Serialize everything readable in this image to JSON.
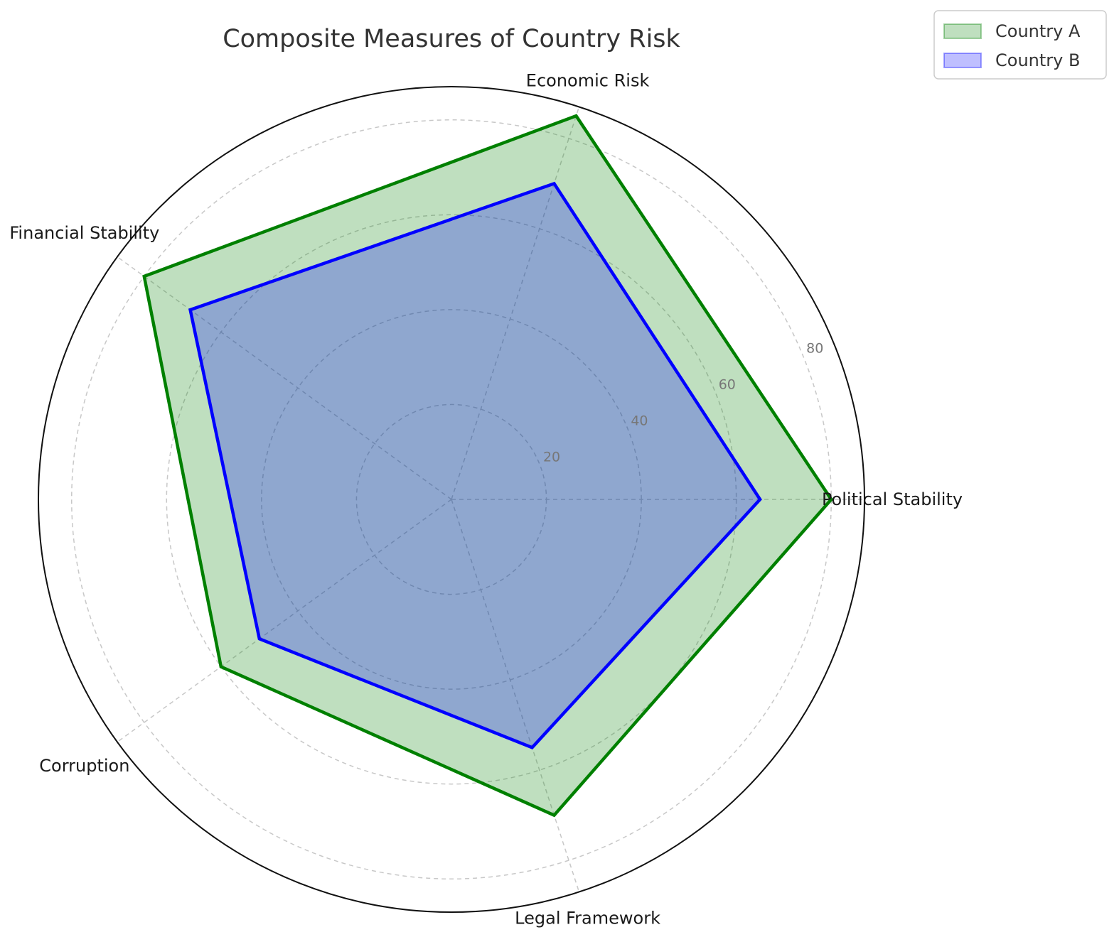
{
  "chart_data": {
    "type": "radar",
    "title": "Composite Measures of Country Risk",
    "categories": [
      "Political Stability",
      "Economic Risk",
      "Financial Stability",
      "Corruption",
      "Legal Framework"
    ],
    "series": [
      {
        "name": "Country A",
        "values": [
          80,
          85,
          80,
          60,
          70
        ],
        "color": "#008000",
        "fill": "rgba(0,128,0,0.25)"
      },
      {
        "name": "Country B",
        "values": [
          65,
          70,
          68,
          50,
          55
        ],
        "color": "#0000ff",
        "fill": "rgba(0,0,255,0.25)"
      }
    ],
    "rlim": [
      0,
      87
    ],
    "rticks": [
      20,
      40,
      60,
      80
    ],
    "grid": true,
    "legend_position": "top-right"
  }
}
